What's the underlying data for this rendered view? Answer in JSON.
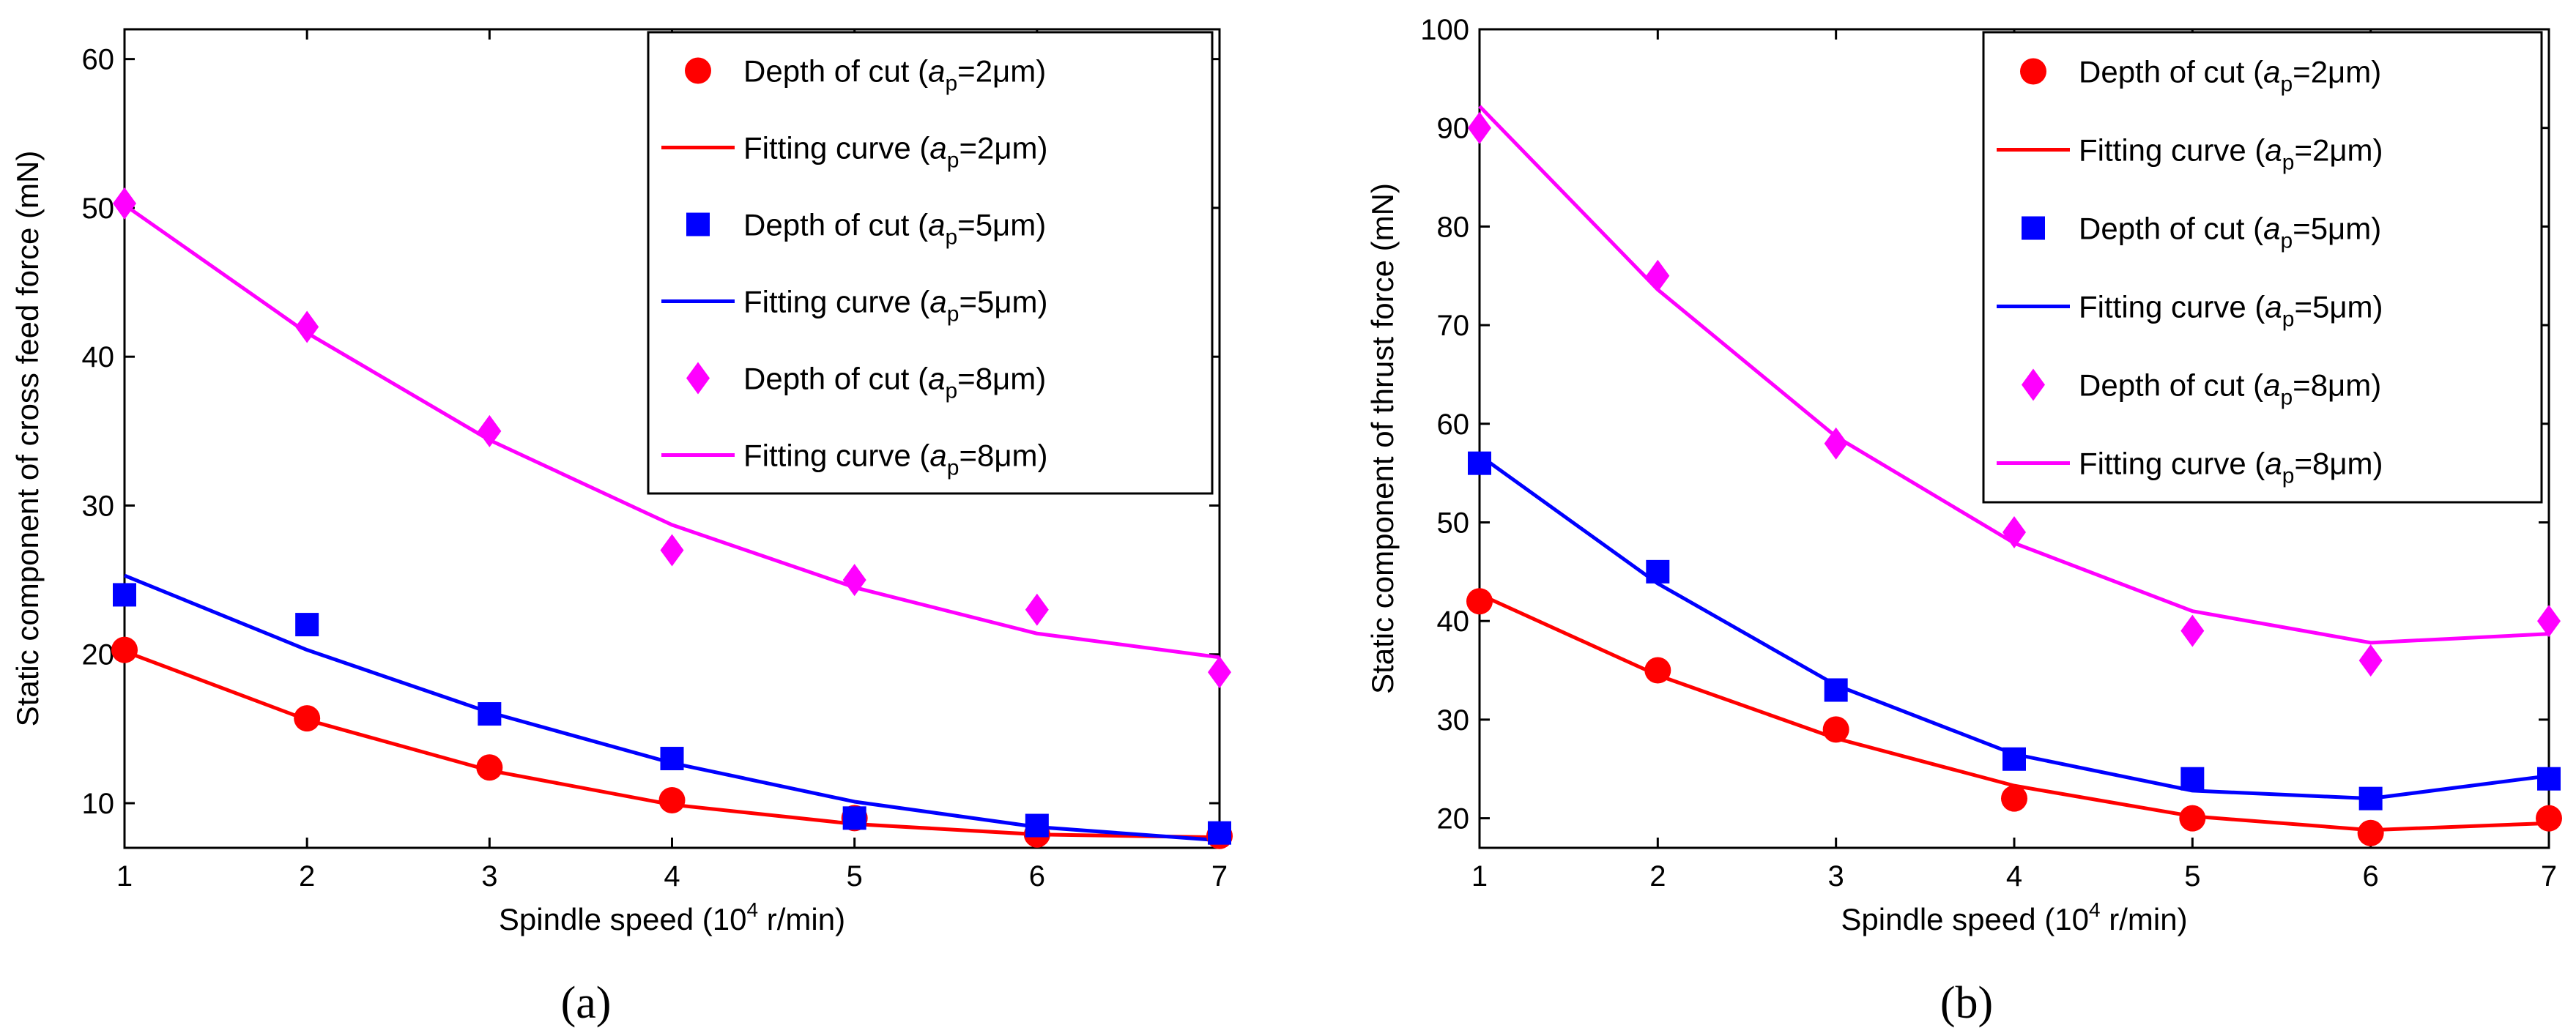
{
  "chart_data": [
    {
      "type": "scatter",
      "panel_label": "(a)",
      "xlabel": "Spindle speed (10",
      "xlabel_sup": "4",
      "xlabel_tail": " r/min)",
      "ylabel": "Static component of cross feed force (mN)",
      "xlim": [
        1,
        7
      ],
      "ylim": [
        7,
        62
      ],
      "xticks": [
        1,
        2,
        3,
        4,
        5,
        6,
        7
      ],
      "yticks": [
        10,
        20,
        30,
        40,
        50,
        60
      ],
      "grid": false,
      "legend_position": "top-right",
      "series": [
        {
          "name": "Depth of cut (a",
          "sub": "p",
          "suffix": "=2μm)",
          "kind": "marker",
          "marker": "circle",
          "color": "#ff0000",
          "x": [
            1,
            2,
            3,
            4,
            5,
            6,
            7
          ],
          "y": [
            20.3,
            15.7,
            12.4,
            10.2,
            9.0,
            7.9,
            7.8
          ]
        },
        {
          "name": "Fitting curve (a",
          "sub": "p",
          "suffix": "=2μm)",
          "kind": "line",
          "color": "#ff0000",
          "x": [
            1,
            2,
            3,
            4,
            5,
            6,
            7
          ],
          "y": [
            20.2,
            15.6,
            12.2,
            9.9,
            8.6,
            7.9,
            7.7
          ]
        },
        {
          "name": "Depth of cut (a",
          "sub": "p",
          "suffix": "=5μm)",
          "kind": "marker",
          "marker": "square",
          "color": "#0000ff",
          "x": [
            1,
            2,
            3,
            4,
            5,
            6,
            7
          ],
          "y": [
            24.0,
            22.0,
            16.0,
            13.0,
            9.0,
            8.5,
            8.0
          ]
        },
        {
          "name": "Fitting curve (a",
          "sub": "p",
          "suffix": "=5μm)",
          "kind": "line",
          "color": "#0000ff",
          "x": [
            1,
            2,
            3,
            4,
            5,
            6,
            7
          ],
          "y": [
            25.3,
            20.3,
            16.1,
            12.7,
            10.1,
            8.4,
            7.5
          ]
        },
        {
          "name": "Depth of cut (a",
          "sub": "p",
          "suffix": "=8μm)",
          "kind": "marker",
          "marker": "diamond",
          "color": "#ff00ff",
          "x": [
            1,
            2,
            3,
            4,
            5,
            6,
            7
          ],
          "y": [
            50.3,
            42.0,
            35.0,
            27.0,
            25.0,
            23.0,
            18.8
          ]
        },
        {
          "name": "Fitting curve (a",
          "sub": "p",
          "suffix": "=8μm)",
          "kind": "line",
          "color": "#ff00ff",
          "x": [
            1,
            2,
            3,
            4,
            5,
            6,
            7
          ],
          "y": [
            50.2,
            41.6,
            34.4,
            28.7,
            24.5,
            21.4,
            19.8
          ]
        }
      ]
    },
    {
      "type": "scatter",
      "panel_label": "(b)",
      "xlabel": "Spindle speed (10",
      "xlabel_sup": "4",
      "xlabel_tail": " r/min)",
      "ylabel": "Static component of thrust force (mN)",
      "xlim": [
        1,
        7
      ],
      "ylim": [
        17,
        100
      ],
      "xticks": [
        1,
        2,
        3,
        4,
        5,
        6,
        7
      ],
      "yticks": [
        20,
        30,
        40,
        50,
        60,
        70,
        80,
        90,
        100
      ],
      "grid": false,
      "legend_position": "top-right",
      "series": [
        {
          "name": "Depth of cut (a",
          "sub": "p",
          "suffix": "=2μm)",
          "kind": "marker",
          "marker": "circle",
          "color": "#ff0000",
          "x": [
            1,
            2,
            3,
            4,
            5,
            6,
            7
          ],
          "y": [
            42.0,
            35.0,
            29.0,
            22.0,
            20.0,
            18.5,
            20.0
          ]
        },
        {
          "name": "Fitting curve (a",
          "sub": "p",
          "suffix": "=2μm)",
          "kind": "line",
          "color": "#ff0000",
          "x": [
            1,
            2,
            3,
            4,
            5,
            6,
            7
          ],
          "y": [
            42.7,
            34.5,
            28.1,
            23.3,
            20.2,
            18.8,
            19.5
          ]
        },
        {
          "name": "Depth of cut (a",
          "sub": "p",
          "suffix": "=5μm)",
          "kind": "marker",
          "marker": "square",
          "color": "#0000ff",
          "x": [
            1,
            2,
            3,
            4,
            5,
            6,
            7
          ],
          "y": [
            56.0,
            45.0,
            33.0,
            26.0,
            24.0,
            22.0,
            24.0
          ]
        },
        {
          "name": "Fitting curve (a",
          "sub": "p",
          "suffix": "=5μm)",
          "kind": "line",
          "color": "#0000ff",
          "x": [
            1,
            2,
            3,
            4,
            5,
            6,
            7
          ],
          "y": [
            56.8,
            43.8,
            33.5,
            26.5,
            22.8,
            22.0,
            24.3
          ]
        },
        {
          "name": "Depth of cut (a",
          "sub": "p",
          "suffix": "=8μm)",
          "kind": "marker",
          "marker": "diamond",
          "color": "#ff00ff",
          "x": [
            1,
            2,
            3,
            4,
            5,
            6,
            7
          ],
          "y": [
            90.0,
            75.0,
            58.0,
            49.0,
            39.0,
            36.0,
            40.0
          ]
        },
        {
          "name": "Fitting curve (a",
          "sub": "p",
          "suffix": "=8μm)",
          "kind": "line",
          "color": "#ff00ff",
          "x": [
            1,
            2,
            3,
            4,
            5,
            6,
            7
          ],
          "y": [
            92.2,
            73.6,
            58.7,
            47.9,
            41.0,
            37.8,
            38.7
          ]
        }
      ]
    }
  ]
}
